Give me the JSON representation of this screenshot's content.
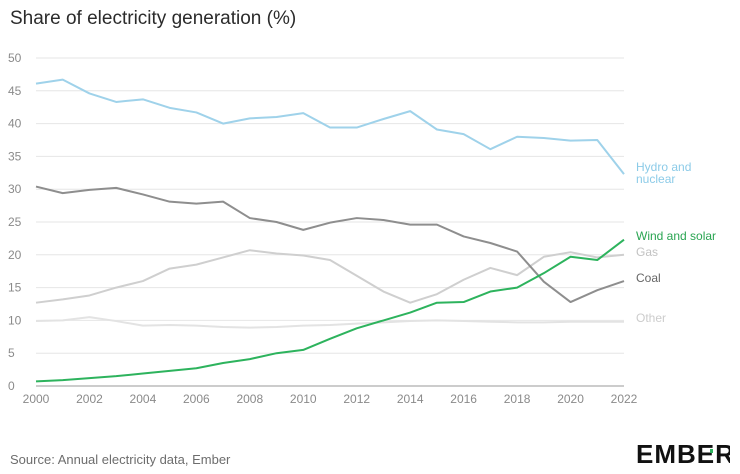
{
  "title": "Share of electricity generation (%)",
  "source": "Source: Annual electricity data, Ember",
  "logo": {
    "text": "EMBER",
    "accent": "#2db35d"
  },
  "chart_data": {
    "type": "line",
    "title": "Share of electricity generation (%)",
    "xlabel": "",
    "ylabel": "",
    "ylim": [
      0,
      50
    ],
    "xlim": [
      2000,
      2022
    ],
    "yticks": [
      "0",
      "5",
      "10",
      "15",
      "20",
      "25",
      "30",
      "35",
      "40",
      "45",
      "50"
    ],
    "xticks": [
      "2000",
      "2002",
      "2004",
      "2006",
      "2008",
      "2010",
      "2012",
      "2014",
      "2016",
      "2018",
      "2020",
      "2022"
    ],
    "grid": true,
    "x": [
      2000,
      2001,
      2002,
      2003,
      2004,
      2005,
      2006,
      2007,
      2008,
      2009,
      2010,
      2011,
      2012,
      2013,
      2014,
      2015,
      2016,
      2017,
      2018,
      2019,
      2020,
      2021,
      2022
    ],
    "series": [
      {
        "name": "Hydro and nuclear",
        "color": "#9fd2ea",
        "label_color": "#8ccbe8",
        "values": [
          46.1,
          46.7,
          44.6,
          43.3,
          43.7,
          42.4,
          41.7,
          40.0,
          40.8,
          41.0,
          41.6,
          39.4,
          39.4,
          40.7,
          41.9,
          39.1,
          38.4,
          36.1,
          38.0,
          37.8,
          37.4,
          37.5,
          32.3
        ]
      },
      {
        "name": "Wind and solar",
        "color": "#2db35d",
        "label_color": "#2aa552",
        "values": [
          0.7,
          0.9,
          1.2,
          1.5,
          1.9,
          2.3,
          2.7,
          3.5,
          4.1,
          5.0,
          5.5,
          7.2,
          8.8,
          10.0,
          11.2,
          12.7,
          12.8,
          14.4,
          15.0,
          17.2,
          19.7,
          19.2,
          22.3
        ]
      },
      {
        "name": "Gas",
        "color": "#cfcfcf",
        "label_color": "#c2c2c2",
        "values": [
          12.7,
          13.2,
          13.8,
          15.0,
          16.0,
          17.9,
          18.5,
          19.6,
          20.7,
          20.2,
          19.9,
          19.2,
          16.8,
          14.4,
          12.7,
          14.0,
          16.2,
          18.0,
          16.9,
          19.7,
          20.4,
          19.6,
          20.0
        ]
      },
      {
        "name": "Coal",
        "color": "#8e8e8e",
        "label_color": "#666666",
        "values": [
          30.4,
          29.4,
          29.9,
          30.2,
          29.2,
          28.1,
          27.8,
          28.1,
          25.6,
          25.0,
          23.8,
          24.9,
          25.6,
          25.3,
          24.6,
          24.6,
          22.8,
          21.8,
          20.5,
          15.9,
          12.8,
          14.6,
          16.0
        ]
      },
      {
        "name": "Other",
        "color": "#e3e3e3",
        "label_color": "#cccccc",
        "values": [
          9.9,
          10.0,
          10.5,
          9.9,
          9.2,
          9.3,
          9.2,
          9.0,
          8.9,
          9.0,
          9.2,
          9.3,
          9.5,
          9.7,
          9.9,
          10.0,
          9.9,
          9.8,
          9.7,
          9.7,
          9.8,
          9.8,
          9.8
        ]
      }
    ]
  }
}
